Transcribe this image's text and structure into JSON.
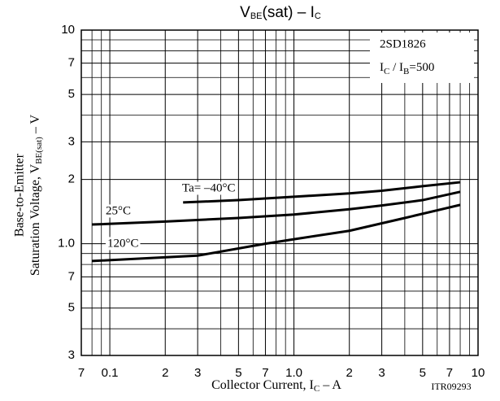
{
  "chart_data": {
    "type": "line",
    "title": [
      "V",
      "BE",
      "(sat)  –  I",
      "C"
    ],
    "x_label": [
      "Collector Current, I",
      "C",
      "  –  A"
    ],
    "y_label": [
      "Base-to-Emitter",
      "Saturation Voltage, V",
      "BE(sat)",
      "  –  V"
    ],
    "annotations": {
      "part": "2SD1826",
      "condition": [
        "I",
        "C",
        " / I",
        "B",
        "=500"
      ],
      "code": "ITR09293"
    },
    "log_x": true,
    "log_y": true,
    "grid": true,
    "xlim": [
      0.07,
      10
    ],
    "ylim": [
      0.3,
      10
    ],
    "xticks": [
      {
        "value": 0.07,
        "label": "7"
      },
      0.1,
      {
        "value": 0.2,
        "label": "2"
      },
      {
        "value": 0.3,
        "label": "3"
      },
      {
        "value": 0.5,
        "label": "5"
      },
      {
        "value": 0.7,
        "label": "7"
      },
      {
        "value": 1,
        "label": "1.0"
      },
      2,
      3,
      5,
      7,
      10
    ],
    "yticks": [
      {
        "value": 0.3,
        "label": "3"
      },
      {
        "value": 0.5,
        "label": "5"
      },
      {
        "value": 0.7,
        "label": "7"
      },
      {
        "value": 1,
        "label": "1.0"
      },
      2,
      3,
      5,
      7,
      10
    ],
    "xminor": [
      0.08,
      0.09,
      0.4,
      0.6,
      0.8,
      0.9,
      4,
      6,
      8,
      9
    ],
    "yminor": [
      0.4,
      0.6,
      0.8,
      0.9,
      4,
      6,
      8,
      9
    ],
    "series": [
      {
        "name": "Ta= –40°C",
        "color": "#000000",
        "x": [
          0.25,
          0.5,
          1,
          2,
          3,
          5,
          8
        ],
        "values": [
          1.56,
          1.6,
          1.66,
          1.72,
          1.77,
          1.86,
          1.94
        ]
      },
      {
        "name": "25°C",
        "color": "#000000",
        "x": [
          0.08,
          0.2,
          0.5,
          1,
          2,
          3,
          5,
          8
        ],
        "values": [
          1.23,
          1.27,
          1.32,
          1.37,
          1.45,
          1.51,
          1.6,
          1.75
        ]
      },
      {
        "name": "120°C",
        "color": "#000000",
        "x": [
          0.08,
          0.3,
          0.7,
          1,
          2,
          4,
          8
        ],
        "values": [
          0.83,
          0.88,
          1.0,
          1.05,
          1.15,
          1.32,
          1.52
        ]
      }
    ]
  }
}
